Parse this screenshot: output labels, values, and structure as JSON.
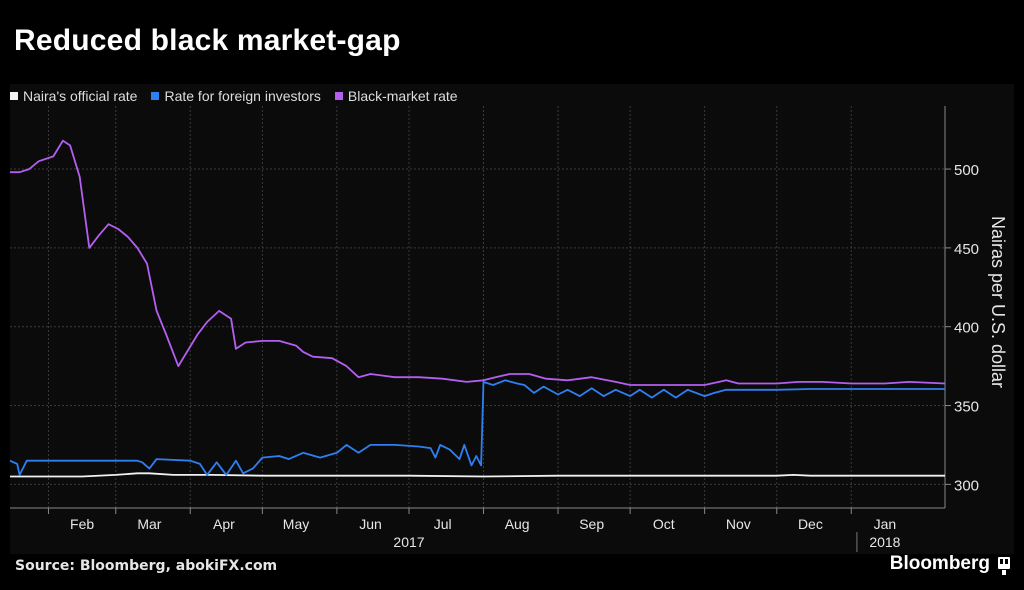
{
  "title": "Reduced black market-gap",
  "source": "Source: Bloomberg, abokiFX.com",
  "brand": "Bloomberg",
  "brand_icon": "bloomberg-terminal-icon",
  "colors": {
    "official": "#f2f2f2",
    "foreign": "#2f7ff2",
    "black": "#b45ff0",
    "background": "#000000",
    "panel": "#0b0b0b",
    "grid": "#3a3a3a"
  },
  "chart_data": {
    "type": "line",
    "title": "Reduced black market-gap",
    "xlabel": "",
    "ylabel": "Nairas per U.S. dollar",
    "ylim": [
      285,
      540
    ],
    "yticks": [
      300,
      350,
      400,
      450,
      500
    ],
    "y_axis_position": "right",
    "xlim": [
      "2017-01-16",
      "2018-02-09"
    ],
    "month_ticks": [
      {
        "label": "Feb",
        "date": "2017-02-15"
      },
      {
        "label": "Mar",
        "date": "2017-03-15"
      },
      {
        "label": "Apr",
        "date": "2017-04-15"
      },
      {
        "label": "May",
        "date": "2017-05-15"
      },
      {
        "label": "Jun",
        "date": "2017-06-15"
      },
      {
        "label": "Jul",
        "date": "2017-07-15"
      },
      {
        "label": "Aug",
        "date": "2017-08-15"
      },
      {
        "label": "Sep",
        "date": "2017-09-15"
      },
      {
        "label": "Oct",
        "date": "2017-10-15"
      },
      {
        "label": "Nov",
        "date": "2017-11-15"
      },
      {
        "label": "Dec",
        "date": "2017-12-15"
      },
      {
        "label": "Jan",
        "date": "2018-01-15"
      }
    ],
    "year_labels": [
      {
        "label": "2017",
        "date": "2017-07-01"
      },
      {
        "label": "2018",
        "date": "2018-01-15"
      }
    ],
    "grid": true,
    "legend_position": "top-left",
    "series": [
      {
        "name": "Naira's official rate",
        "color": "#f2f2f2",
        "points": [
          [
            "2017-01-16",
            305
          ],
          [
            "2017-02-15",
            305
          ],
          [
            "2017-03-01",
            306
          ],
          [
            "2017-03-10",
            307
          ],
          [
            "2017-03-15",
            307
          ],
          [
            "2017-03-25",
            306
          ],
          [
            "2017-04-10",
            306
          ],
          [
            "2017-05-01",
            305.5
          ],
          [
            "2017-06-01",
            305.5
          ],
          [
            "2017-07-01",
            305.5
          ],
          [
            "2017-08-01",
            305
          ],
          [
            "2017-09-01",
            305.5
          ],
          [
            "2017-10-01",
            305.5
          ],
          [
            "2017-11-01",
            305.5
          ],
          [
            "2017-12-01",
            305.5
          ],
          [
            "2017-12-08",
            306
          ],
          [
            "2017-12-15",
            305.5
          ],
          [
            "2018-01-01",
            305.5
          ],
          [
            "2018-02-09",
            305.5
          ]
        ]
      },
      {
        "name": "Rate for foreign investors",
        "color": "#2f7ff2",
        "points": [
          [
            "2017-01-16",
            315
          ],
          [
            "2017-01-19",
            313
          ],
          [
            "2017-01-20",
            306
          ],
          [
            "2017-01-23",
            315
          ],
          [
            "2017-02-05",
            315
          ],
          [
            "2017-02-20",
            315
          ],
          [
            "2017-03-05",
            315
          ],
          [
            "2017-03-10",
            315
          ],
          [
            "2017-03-12",
            314
          ],
          [
            "2017-03-15",
            310
          ],
          [
            "2017-03-18",
            316
          ],
          [
            "2017-04-01",
            315
          ],
          [
            "2017-04-05",
            313
          ],
          [
            "2017-04-08",
            306
          ],
          [
            "2017-04-12",
            314
          ],
          [
            "2017-04-16",
            306
          ],
          [
            "2017-04-20",
            315
          ],
          [
            "2017-04-23",
            307
          ],
          [
            "2017-04-27",
            310
          ],
          [
            "2017-05-01",
            317
          ],
          [
            "2017-05-08",
            318
          ],
          [
            "2017-05-12",
            316
          ],
          [
            "2017-05-18",
            320
          ],
          [
            "2017-05-25",
            317
          ],
          [
            "2017-06-01",
            320
          ],
          [
            "2017-06-05",
            325
          ],
          [
            "2017-06-10",
            320
          ],
          [
            "2017-06-15",
            325
          ],
          [
            "2017-06-25",
            325
          ],
          [
            "2017-07-05",
            324
          ],
          [
            "2017-07-10",
            323
          ],
          [
            "2017-07-12",
            317
          ],
          [
            "2017-07-14",
            325
          ],
          [
            "2017-07-18",
            322
          ],
          [
            "2017-07-22",
            316
          ],
          [
            "2017-07-24",
            325
          ],
          [
            "2017-07-27",
            312
          ],
          [
            "2017-07-29",
            318
          ],
          [
            "2017-07-31",
            312
          ],
          [
            "2017-08-01",
            365
          ],
          [
            "2017-08-05",
            363
          ],
          [
            "2017-08-10",
            366
          ],
          [
            "2017-08-15",
            364
          ],
          [
            "2017-08-18",
            363
          ],
          [
            "2017-08-22",
            358
          ],
          [
            "2017-08-26",
            362
          ],
          [
            "2017-09-01",
            357
          ],
          [
            "2017-09-05",
            360
          ],
          [
            "2017-09-10",
            356
          ],
          [
            "2017-09-15",
            361
          ],
          [
            "2017-09-20",
            356
          ],
          [
            "2017-09-25",
            360
          ],
          [
            "2017-10-01",
            356
          ],
          [
            "2017-10-05",
            360
          ],
          [
            "2017-10-10",
            355
          ],
          [
            "2017-10-15",
            360
          ],
          [
            "2017-10-20",
            355
          ],
          [
            "2017-10-25",
            360
          ],
          [
            "2017-11-01",
            356
          ],
          [
            "2017-11-05",
            358
          ],
          [
            "2017-11-10",
            360
          ],
          [
            "2017-11-20",
            360
          ],
          [
            "2017-12-01",
            360
          ],
          [
            "2017-12-15",
            360.5
          ],
          [
            "2018-01-01",
            360.5
          ],
          [
            "2018-02-09",
            360.5
          ]
        ]
      },
      {
        "name": "Black-market rate",
        "color": "#b45ff0",
        "points": [
          [
            "2017-01-16",
            498
          ],
          [
            "2017-01-20",
            498
          ],
          [
            "2017-01-24",
            500
          ],
          [
            "2017-01-28",
            505
          ],
          [
            "2017-02-03",
            508
          ],
          [
            "2017-02-07",
            518
          ],
          [
            "2017-02-10",
            515
          ],
          [
            "2017-02-14",
            495
          ],
          [
            "2017-02-18",
            450
          ],
          [
            "2017-02-22",
            458
          ],
          [
            "2017-02-26",
            465
          ],
          [
            "2017-03-02",
            462
          ],
          [
            "2017-03-06",
            457
          ],
          [
            "2017-03-10",
            450
          ],
          [
            "2017-03-14",
            440
          ],
          [
            "2017-03-18",
            410
          ],
          [
            "2017-03-22",
            395
          ],
          [
            "2017-03-27",
            375
          ],
          [
            "2017-03-31",
            385
          ],
          [
            "2017-04-04",
            395
          ],
          [
            "2017-04-08",
            403
          ],
          [
            "2017-04-13",
            410
          ],
          [
            "2017-04-18",
            405
          ],
          [
            "2017-04-20",
            386
          ],
          [
            "2017-04-24",
            390
          ],
          [
            "2017-05-01",
            391
          ],
          [
            "2017-05-08",
            391
          ],
          [
            "2017-05-15",
            388
          ],
          [
            "2017-05-18",
            384
          ],
          [
            "2017-05-22",
            381
          ],
          [
            "2017-05-30",
            380
          ],
          [
            "2017-06-05",
            375
          ],
          [
            "2017-06-10",
            368
          ],
          [
            "2017-06-15",
            370
          ],
          [
            "2017-06-25",
            368
          ],
          [
            "2017-07-05",
            368
          ],
          [
            "2017-07-15",
            367
          ],
          [
            "2017-07-25",
            365
          ],
          [
            "2017-08-01",
            366
          ],
          [
            "2017-08-06",
            368
          ],
          [
            "2017-08-12",
            370
          ],
          [
            "2017-08-20",
            370
          ],
          [
            "2017-08-27",
            367
          ],
          [
            "2017-09-05",
            366
          ],
          [
            "2017-09-15",
            368
          ],
          [
            "2017-09-25",
            365
          ],
          [
            "2017-10-01",
            363
          ],
          [
            "2017-10-15",
            363
          ],
          [
            "2017-11-01",
            363
          ],
          [
            "2017-11-10",
            366
          ],
          [
            "2017-11-15",
            364
          ],
          [
            "2017-12-01",
            364
          ],
          [
            "2017-12-10",
            365
          ],
          [
            "2017-12-20",
            365
          ],
          [
            "2018-01-01",
            364
          ],
          [
            "2018-01-15",
            364
          ],
          [
            "2018-01-25",
            365
          ],
          [
            "2018-02-09",
            364
          ]
        ]
      }
    ]
  }
}
